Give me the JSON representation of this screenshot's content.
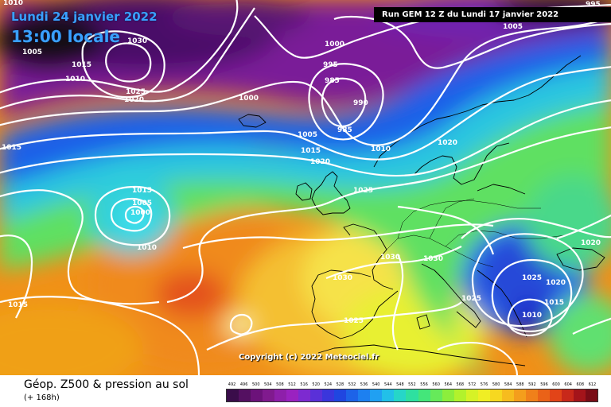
{
  "header": {
    "date": "Lundi 24 janvier 2022",
    "local_time": "13:00 locale",
    "run": "Run GEM 12 Z du Lundi 17 janvier 2022"
  },
  "copyright": "Copyright (c) 2022 Meteociel.fr",
  "footer": {
    "title": "Géop. Z500 & pression au sol",
    "forecast_hour": "(+ 168h)"
  },
  "legend": {
    "values": [
      "492",
      "496",
      "500",
      "504",
      "508",
      "512",
      "516",
      "520",
      "524",
      "528",
      "532",
      "536",
      "540",
      "544",
      "548",
      "552",
      "556",
      "560",
      "564",
      "568",
      "572",
      "576",
      "580",
      "584",
      "588",
      "592",
      "596",
      "600",
      "604",
      "608",
      "612"
    ],
    "colors": [
      "#3a0d4a",
      "#541061",
      "#6c127a",
      "#801a8e",
      "#8e1faa",
      "#9a22c0",
      "#7d2ad0",
      "#5a30d8",
      "#3a36dc",
      "#2046e0",
      "#1d63e8",
      "#1d80f0",
      "#20a0f2",
      "#22c0e8",
      "#26d6c8",
      "#2ee0a0",
      "#44e67a",
      "#66ea5a",
      "#8cee3c",
      "#b2f22c",
      "#d6f226",
      "#f0ee24",
      "#f6d820",
      "#f6bc1e",
      "#f49e1c",
      "#f0801a",
      "#ea6218",
      "#e24418",
      "#c8281a",
      "#a4141a",
      "#7a0c16"
    ]
  },
  "isobars": [
    {
      "label": "1030"
    },
    {
      "label": "1025"
    },
    {
      "label": "1020"
    },
    {
      "label": "1015"
    },
    {
      "label": "1010"
    },
    {
      "label": "1005"
    },
    {
      "label": "1005"
    },
    {
      "label": "1000"
    },
    {
      "label": "995"
    },
    {
      "label": "985"
    },
    {
      "label": "990"
    },
    {
      "label": "985"
    },
    {
      "label": "1000"
    },
    {
      "label": "1005"
    },
    {
      "label": "1015"
    },
    {
      "label": "1020"
    },
    {
      "label": "1010"
    },
    {
      "label": "1020"
    },
    {
      "label": "1025"
    },
    {
      "label": "1015"
    },
    {
      "label": "1005"
    },
    {
      "label": "1000"
    },
    {
      "label": "1010"
    },
    {
      "label": "1015"
    },
    {
      "label": "1015"
    },
    {
      "label": "1030"
    },
    {
      "label": "1030"
    },
    {
      "label": "1030"
    },
    {
      "label": "1025"
    },
    {
      "label": "1025"
    },
    {
      "label": "1025"
    },
    {
      "label": "1020"
    },
    {
      "label": "1015"
    },
    {
      "label": "1010"
    },
    {
      "label": "1020"
    },
    {
      "label": "1005"
    },
    {
      "label": "995"
    },
    {
      "label": "1010"
    },
    {
      "label": "1015"
    },
    {
      "label": "1015"
    }
  ]
}
